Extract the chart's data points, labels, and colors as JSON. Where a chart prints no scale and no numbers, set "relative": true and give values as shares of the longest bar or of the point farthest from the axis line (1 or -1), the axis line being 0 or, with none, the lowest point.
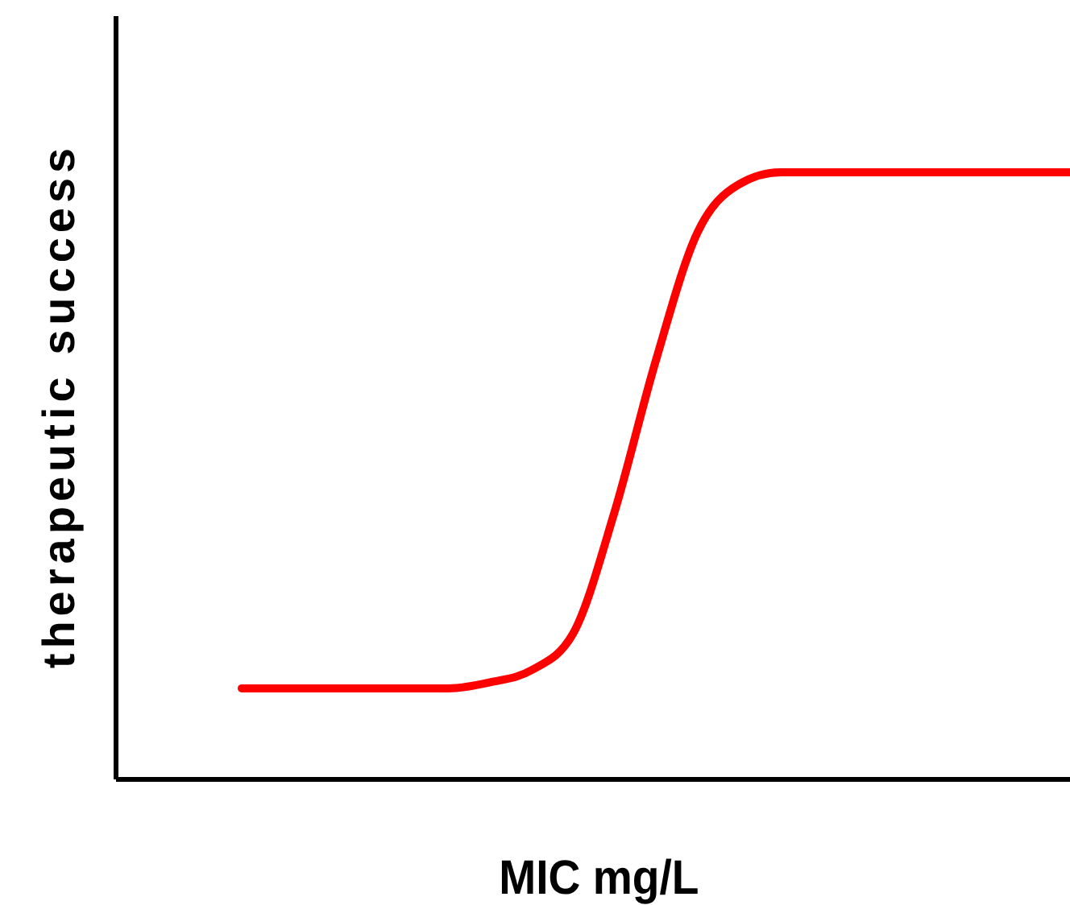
{
  "chart_data": {
    "type": "line",
    "xlabel": "MIC mg/L",
    "ylabel": "therapeutic success",
    "relative": true,
    "marker": "none",
    "line_style": "solid",
    "categories": [
      null,
      null,
      null,
      null,
      null,
      null,
      null,
      null,
      null,
      null,
      null,
      null,
      null,
      null,
      null,
      null,
      null,
      null,
      null,
      null,
      null
    ],
    "series": [
      {
        "color": "#ff0000",
        "values": [
          0.15,
          0.15,
          0.15,
          0.15,
          0.15,
          0.15,
          0.16,
          0.18,
          0.24,
          0.44,
          0.69,
          0.9,
          0.98,
          1,
          1,
          1,
          1,
          1,
          1,
          1,
          1
        ]
      }
    ]
  }
}
